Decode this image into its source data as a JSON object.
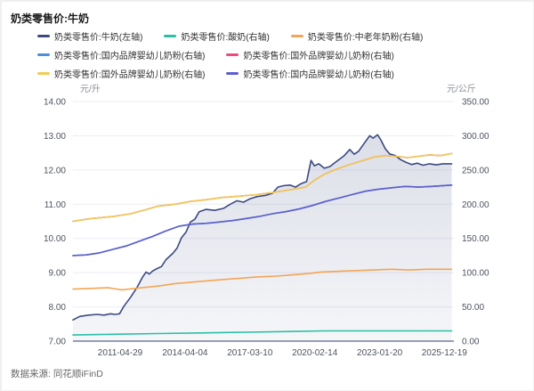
{
  "title": "奶类零售价:牛奶",
  "source": "数据来源: 同花顺iFinD",
  "chart_data": {
    "type": "line",
    "title": "奶类零售价:牛奶",
    "legend_position": "top",
    "grid": true,
    "left_axis": {
      "unit": "元/升",
      "min": 7,
      "max": 14,
      "tick_step": 1,
      "tick_labels": [
        "7.00",
        "8.00",
        "9.00",
        "10.00",
        "11.00",
        "12.00",
        "13.00",
        "14.00"
      ]
    },
    "right_axis": {
      "unit": "元/公斤",
      "min": 0,
      "max": 350,
      "tick_step": 50,
      "tick_labels": [
        "0.00",
        "50.00",
        "100.00",
        "150.00",
        "200.00",
        "250.00",
        "300.00",
        "350.00"
      ]
    },
    "x_axis": {
      "min": 2009.2,
      "max": 2026.4,
      "ticks": [
        {
          "label": "2011-04-29",
          "x": 2011.33
        },
        {
          "label": "2014-04-04",
          "x": 2014.26
        },
        {
          "label": "2017-03-10",
          "x": 2017.19
        },
        {
          "label": "2020-02-14",
          "x": 2020.12
        },
        {
          "label": "2023-01-20",
          "x": 2023.05
        },
        {
          "label": "2025-12-19",
          "x": 2025.97
        }
      ]
    },
    "series": [
      {
        "name": "奶类零售价:牛奶(左轴)",
        "axis": "left",
        "color": "#3c4a80",
        "area": true,
        "points": [
          [
            2009.2,
            7.62
          ],
          [
            2009.5,
            7.72
          ],
          [
            2009.9,
            7.76
          ],
          [
            2010.3,
            7.78
          ],
          [
            2010.6,
            7.76
          ],
          [
            2010.9,
            7.8
          ],
          [
            2011.1,
            7.78
          ],
          [
            2011.3,
            7.8
          ],
          [
            2011.5,
            8.02
          ],
          [
            2011.8,
            8.28
          ],
          [
            2012.1,
            8.58
          ],
          [
            2012.35,
            8.88
          ],
          [
            2012.5,
            9.02
          ],
          [
            2012.65,
            8.96
          ],
          [
            2012.8,
            9.05
          ],
          [
            2013.0,
            9.12
          ],
          [
            2013.2,
            9.18
          ],
          [
            2013.4,
            9.38
          ],
          [
            2013.7,
            9.56
          ],
          [
            2013.9,
            9.72
          ],
          [
            2014.1,
            10.02
          ],
          [
            2014.3,
            10.18
          ],
          [
            2014.5,
            10.48
          ],
          [
            2014.7,
            10.56
          ],
          [
            2014.9,
            10.78
          ],
          [
            2015.2,
            10.85
          ],
          [
            2015.6,
            10.82
          ],
          [
            2016.0,
            10.88
          ],
          [
            2016.3,
            11.0
          ],
          [
            2016.6,
            11.1
          ],
          [
            2016.9,
            11.06
          ],
          [
            2017.2,
            11.16
          ],
          [
            2017.5,
            11.22
          ],
          [
            2017.9,
            11.26
          ],
          [
            2018.2,
            11.32
          ],
          [
            2018.45,
            11.5
          ],
          [
            2018.7,
            11.54
          ],
          [
            2019.0,
            11.56
          ],
          [
            2019.25,
            11.5
          ],
          [
            2019.5,
            11.6
          ],
          [
            2019.75,
            11.66
          ],
          [
            2019.95,
            12.28
          ],
          [
            2020.1,
            12.12
          ],
          [
            2020.3,
            12.18
          ],
          [
            2020.55,
            12.05
          ],
          [
            2020.8,
            12.1
          ],
          [
            2021.1,
            12.25
          ],
          [
            2021.45,
            12.42
          ],
          [
            2021.7,
            12.6
          ],
          [
            2021.9,
            12.46
          ],
          [
            2022.1,
            12.55
          ],
          [
            2022.35,
            12.78
          ],
          [
            2022.6,
            13.0
          ],
          [
            2022.75,
            12.93
          ],
          [
            2022.95,
            13.03
          ],
          [
            2023.1,
            12.88
          ],
          [
            2023.3,
            12.62
          ],
          [
            2023.5,
            12.47
          ],
          [
            2023.75,
            12.42
          ],
          [
            2024.0,
            12.3
          ],
          [
            2024.25,
            12.22
          ],
          [
            2024.5,
            12.16
          ],
          [
            2024.75,
            12.2
          ],
          [
            2025.0,
            12.14
          ],
          [
            2025.3,
            12.18
          ],
          [
            2025.6,
            12.15
          ],
          [
            2025.9,
            12.18
          ],
          [
            2026.3,
            12.18
          ]
        ]
      },
      {
        "name": "奶类零售价:酸奶(右轴)",
        "axis": "right",
        "color": "#2abfa5",
        "area": false,
        "points": [
          [
            2009.2,
            9
          ],
          [
            2011,
            10
          ],
          [
            2013,
            11
          ],
          [
            2015,
            12
          ],
          [
            2017,
            13
          ],
          [
            2019,
            14
          ],
          [
            2020.5,
            15
          ],
          [
            2022,
            15
          ],
          [
            2024,
            15
          ],
          [
            2026.3,
            15
          ]
        ]
      },
      {
        "name": "奶类零售价:中老年奶粉(右轴)",
        "axis": "right",
        "color": "#f5a455",
        "area": false,
        "points": [
          [
            2009.2,
            76
          ],
          [
            2010,
            77
          ],
          [
            2010.8,
            78
          ],
          [
            2011.4,
            75
          ],
          [
            2012,
            77
          ],
          [
            2012.6,
            79
          ],
          [
            2013.2,
            81
          ],
          [
            2013.8,
            84
          ],
          [
            2014.5,
            86
          ],
          [
            2015.2,
            88
          ],
          [
            2016,
            90
          ],
          [
            2016.8,
            92
          ],
          [
            2017.6,
            94
          ],
          [
            2018.4,
            95
          ],
          [
            2019.2,
            97
          ],
          [
            2019.9,
            99
          ],
          [
            2020.4,
            101
          ],
          [
            2021.2,
            102
          ],
          [
            2022,
            103
          ],
          [
            2022.8,
            104
          ],
          [
            2023.6,
            105
          ],
          [
            2024.4,
            104
          ],
          [
            2025.2,
            105
          ],
          [
            2026.3,
            105
          ]
        ]
      },
      {
        "name": "奶类零售价:国内品牌婴幼儿奶粉(右轴)",
        "axis": "right",
        "color": "#4a8fd9",
        "area": false,
        "points": [
          [
            2009.2,
            125
          ],
          [
            2009.8,
            126
          ],
          [
            2010.4,
            129
          ],
          [
            2011,
            134
          ],
          [
            2011.6,
            139
          ],
          [
            2012.2,
            146
          ],
          [
            2012.8,
            153
          ],
          [
            2013.4,
            161
          ],
          [
            2014,
            168
          ],
          [
            2014.6,
            171
          ],
          [
            2015.2,
            172
          ],
          [
            2015.8,
            174
          ],
          [
            2016.4,
            176
          ],
          [
            2017,
            179
          ],
          [
            2017.6,
            182
          ],
          [
            2018.2,
            186
          ],
          [
            2018.8,
            189
          ],
          [
            2019.4,
            193
          ],
          [
            2020,
            198
          ],
          [
            2020.6,
            204
          ],
          [
            2021.2,
            209
          ],
          [
            2021.8,
            214
          ],
          [
            2022.4,
            219
          ],
          [
            2023,
            222
          ],
          [
            2023.6,
            224
          ],
          [
            2024.2,
            226
          ],
          [
            2024.8,
            225
          ],
          [
            2025.4,
            226
          ],
          [
            2026.3,
            228
          ]
        ]
      },
      {
        "name": "奶类零售价:国外品牌婴幼儿奶粉(右轴)",
        "axis": "right",
        "color": "#e94a82",
        "area": false,
        "points": [
          [
            2009.2,
            175
          ],
          [
            2010,
            179
          ],
          [
            2011,
            182
          ],
          [
            2011.8,
            186
          ],
          [
            2012.5,
            192
          ],
          [
            2013,
            197
          ],
          [
            2013.8,
            200
          ],
          [
            2014.5,
            204
          ],
          [
            2015.3,
            207
          ],
          [
            2016,
            210
          ],
          [
            2016.8,
            212
          ],
          [
            2017.5,
            214
          ],
          [
            2018.2,
            217
          ],
          [
            2019,
            221
          ],
          [
            2019.7,
            225
          ],
          [
            2020.1,
            235
          ],
          [
            2020.5,
            243
          ],
          [
            2021,
            250
          ],
          [
            2021.6,
            257
          ],
          [
            2022.2,
            263
          ],
          [
            2022.8,
            269
          ],
          [
            2023.3,
            271
          ],
          [
            2023.8,
            270
          ],
          [
            2024.3,
            268
          ],
          [
            2024.8,
            270
          ],
          [
            2025.3,
            272
          ],
          [
            2025.8,
            271
          ],
          [
            2026.3,
            274
          ]
        ]
      },
      {
        "name": "奶类零售价:国外品牌婴幼儿奶粉(右轴)",
        "axis": "right",
        "color": "#f0cc55",
        "area": false,
        "points": [
          [
            2009.2,
            175
          ],
          [
            2010,
            179
          ],
          [
            2011,
            182
          ],
          [
            2011.8,
            186
          ],
          [
            2012.5,
            192
          ],
          [
            2013,
            197
          ],
          [
            2013.8,
            200
          ],
          [
            2014.5,
            204
          ],
          [
            2015.3,
            207
          ],
          [
            2016,
            210
          ],
          [
            2016.8,
            212
          ],
          [
            2017.5,
            214
          ],
          [
            2018.2,
            217
          ],
          [
            2019,
            221
          ],
          [
            2019.7,
            225
          ],
          [
            2020.1,
            235
          ],
          [
            2020.5,
            243
          ],
          [
            2021,
            250
          ],
          [
            2021.6,
            257
          ],
          [
            2022.2,
            263
          ],
          [
            2022.8,
            269
          ],
          [
            2023.3,
            271
          ],
          [
            2023.8,
            270
          ],
          [
            2024.3,
            268
          ],
          [
            2024.8,
            270
          ],
          [
            2025.3,
            272
          ],
          [
            2025.8,
            271
          ],
          [
            2026.3,
            274
          ]
        ]
      },
      {
        "name": "奶类零售价:国内品牌婴幼儿奶粉(右轴)",
        "axis": "right",
        "color": "#5e5ecf",
        "area": false,
        "points": [
          [
            2009.2,
            125
          ],
          [
            2009.8,
            126
          ],
          [
            2010.4,
            129
          ],
          [
            2011,
            134
          ],
          [
            2011.6,
            139
          ],
          [
            2012.2,
            146
          ],
          [
            2012.8,
            153
          ],
          [
            2013.4,
            161
          ],
          [
            2014,
            168
          ],
          [
            2014.6,
            171
          ],
          [
            2015.2,
            172
          ],
          [
            2015.8,
            174
          ],
          [
            2016.4,
            176
          ],
          [
            2017,
            179
          ],
          [
            2017.6,
            182
          ],
          [
            2018.2,
            186
          ],
          [
            2018.8,
            189
          ],
          [
            2019.4,
            193
          ],
          [
            2020,
            198
          ],
          [
            2020.6,
            204
          ],
          [
            2021.2,
            209
          ],
          [
            2021.8,
            214
          ],
          [
            2022.4,
            219
          ],
          [
            2023,
            222
          ],
          [
            2023.6,
            224
          ],
          [
            2024.2,
            226
          ],
          [
            2024.8,
            225
          ],
          [
            2025.4,
            226
          ],
          [
            2026.3,
            228
          ]
        ]
      }
    ],
    "legend_rows": [
      3,
      2,
      2
    ]
  }
}
